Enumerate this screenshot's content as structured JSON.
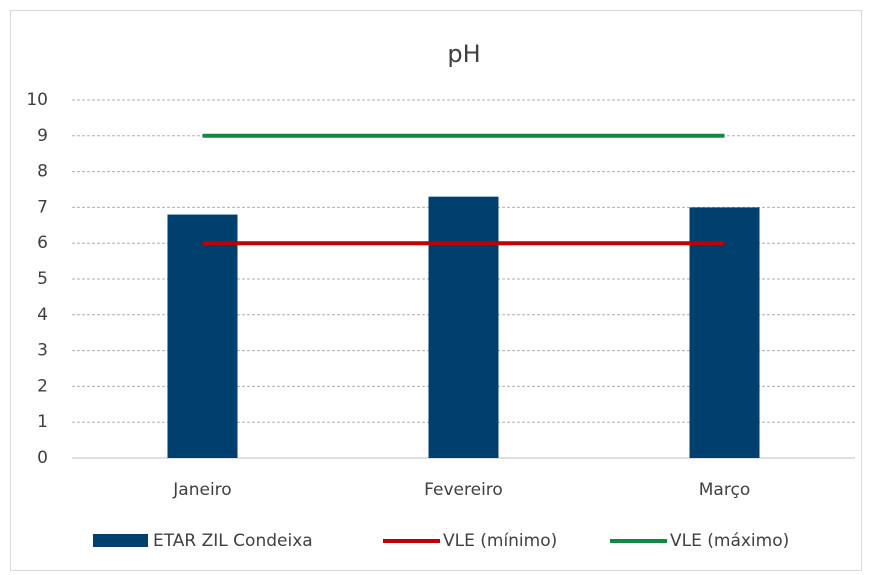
{
  "chart_data": {
    "type": "bar",
    "title": "pH",
    "categories": [
      "Janeiro",
      "Fevereiro",
      "Março"
    ],
    "series": [
      {
        "name": "ETAR ZIL Condeixa",
        "type": "bar",
        "color": "#003f6e",
        "values": [
          6.8,
          7.3,
          7.0
        ]
      },
      {
        "name": "VLE (mínimo)",
        "type": "line",
        "color": "#c00000",
        "values": [
          6,
          6,
          6
        ]
      },
      {
        "name": "VLE (máximo)",
        "type": "line",
        "color": "#0f8a3e",
        "values": [
          9,
          9,
          9
        ]
      }
    ],
    "ylim": [
      0,
      10
    ],
    "yticks": [
      0,
      1,
      2,
      3,
      4,
      5,
      6,
      7,
      8,
      9,
      10
    ],
    "grid": true,
    "legend": "bottom"
  }
}
